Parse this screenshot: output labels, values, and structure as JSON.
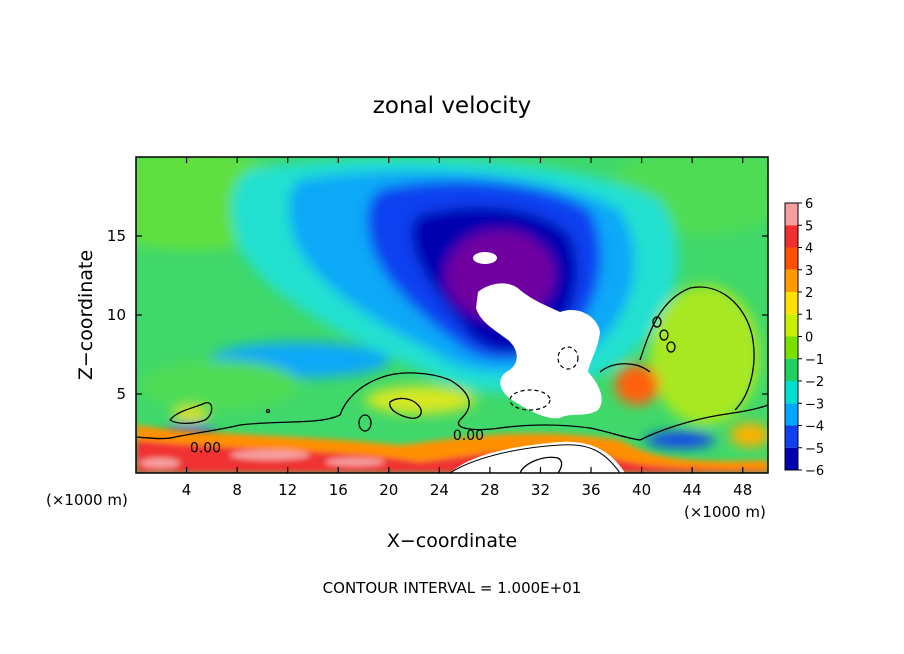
{
  "chart_data": {
    "type": "heatmap",
    "title": "zonal velocity",
    "xlabel": "X−coordinate",
    "ylabel": "Z−coordinate",
    "x_unit_left": "(×1000 m)",
    "x_unit_right": "(×1000 m)",
    "footer": "CONTOUR INTERVAL = 1.000E+01",
    "xlim": [
      0,
      50
    ],
    "ylim": [
      0,
      20
    ],
    "x_ticks": [
      4,
      8,
      12,
      16,
      20,
      24,
      28,
      32,
      36,
      40,
      44,
      48
    ],
    "x_tick_labels": [
      "4",
      "8",
      "12",
      "16",
      "20",
      "24",
      "28",
      "32",
      "36",
      "40",
      "44",
      "48"
    ],
    "y_ticks": [
      5,
      10,
      15
    ],
    "y_tick_labels": [
      "5",
      "10",
      "15"
    ],
    "colorbar": {
      "levels": [
        6,
        5,
        4,
        3,
        2,
        1,
        0,
        -1,
        -2,
        -3,
        -4,
        -5,
        -6
      ],
      "labels": [
        "6",
        "5",
        "4",
        "3",
        "2",
        "1",
        "0",
        "−1",
        "−2",
        "−3",
        "−4",
        "−5",
        "−6"
      ],
      "colors": [
        "#f5a0a0",
        "#f03030",
        "#ff5000",
        "#ff9a00",
        "#ffe000",
        "#c8f000",
        "#7ae000",
        "#20d060",
        "#00e0d0",
        "#00a8ff",
        "#1040f0",
        "#0000b0",
        "#7000a0"
      ]
    },
    "contour_labels": [
      {
        "text": "0.00",
        "x": 5.5,
        "z": 1.6
      },
      {
        "text": "0.00",
        "x": 26.3,
        "z": 2.4
      }
    ],
    "regions": [
      {
        "name": "background",
        "value": 0.3
      },
      {
        "name": "upper-left green",
        "value": 0.5
      },
      {
        "name": "cyan band",
        "value": -2
      },
      {
        "name": "blue core",
        "value": -4.5
      },
      {
        "name": "purple core",
        "value": -6
      },
      {
        "name": "surface positive band",
        "value": 4
      },
      {
        "name": "positive patch near x=40",
        "value": 4.5
      },
      {
        "name": "right positive region",
        "value": 1.5
      }
    ]
  }
}
